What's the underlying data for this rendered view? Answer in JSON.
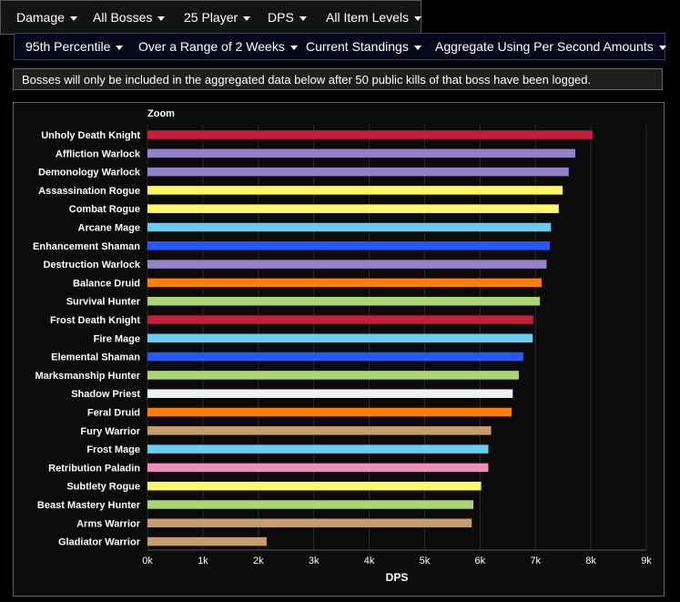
{
  "filters_top": [
    {
      "label": "Damage"
    },
    {
      "label": "All Bosses"
    },
    {
      "label": "25 Player"
    },
    {
      "label": "DPS"
    },
    {
      "label": "All Item Levels"
    }
  ],
  "filters_second": [
    {
      "label": "95th Percentile"
    },
    {
      "label": "Over a Range of 2 Weeks"
    },
    {
      "label": "Current Standings"
    },
    {
      "label": "Aggregate Using Per Second Amounts"
    }
  ],
  "notice": "Bosses will only be included in the aggregated data below after 50 public kills of that boss have been logged.",
  "zoom_label": "Zoom",
  "chart_data": {
    "type": "bar",
    "orientation": "horizontal",
    "xlabel": "DPS",
    "xlim": [
      0,
      9000
    ],
    "xticks": [
      "0k",
      "1k",
      "2k",
      "3k",
      "4k",
      "5k",
      "6k",
      "7k",
      "8k",
      "9k"
    ],
    "grid": true,
    "categories": [
      "Unholy Death Knight",
      "Affliction Warlock",
      "Demonology Warlock",
      "Assassination Rogue",
      "Combat Rogue",
      "Arcane Mage",
      "Enhancement Shaman",
      "Destruction Warlock",
      "Balance Druid",
      "Survival Hunter",
      "Frost Death Knight",
      "Fire Mage",
      "Elemental Shaman",
      "Marksmanship Hunter",
      "Shadow Priest",
      "Feral Druid",
      "Fury Warrior",
      "Frost Mage",
      "Retribution Paladin",
      "Subtlety Rogue",
      "Beast Mastery Hunter",
      "Arms Warrior",
      "Gladiator Warrior"
    ],
    "values": [
      8030,
      7720,
      7600,
      7490,
      7420,
      7280,
      7260,
      7200,
      7110,
      7080,
      6960,
      6950,
      6780,
      6700,
      6590,
      6570,
      6200,
      6150,
      6150,
      6020,
      5880,
      5850,
      2150
    ],
    "colors": [
      "#C41F3B",
      "#9482C9",
      "#9482C9",
      "#FFF569",
      "#FFF569",
      "#69CCF0",
      "#2459FF",
      "#9482C9",
      "#FF7D0A",
      "#ABD473",
      "#C41F3B",
      "#69CCF0",
      "#2459FF",
      "#ABD473",
      "#F0F0F0",
      "#FF7D0A",
      "#C79C6E",
      "#69CCF0",
      "#F58CBA",
      "#FFF569",
      "#ABD473",
      "#C79C6E",
      "#C79C6E"
    ]
  }
}
